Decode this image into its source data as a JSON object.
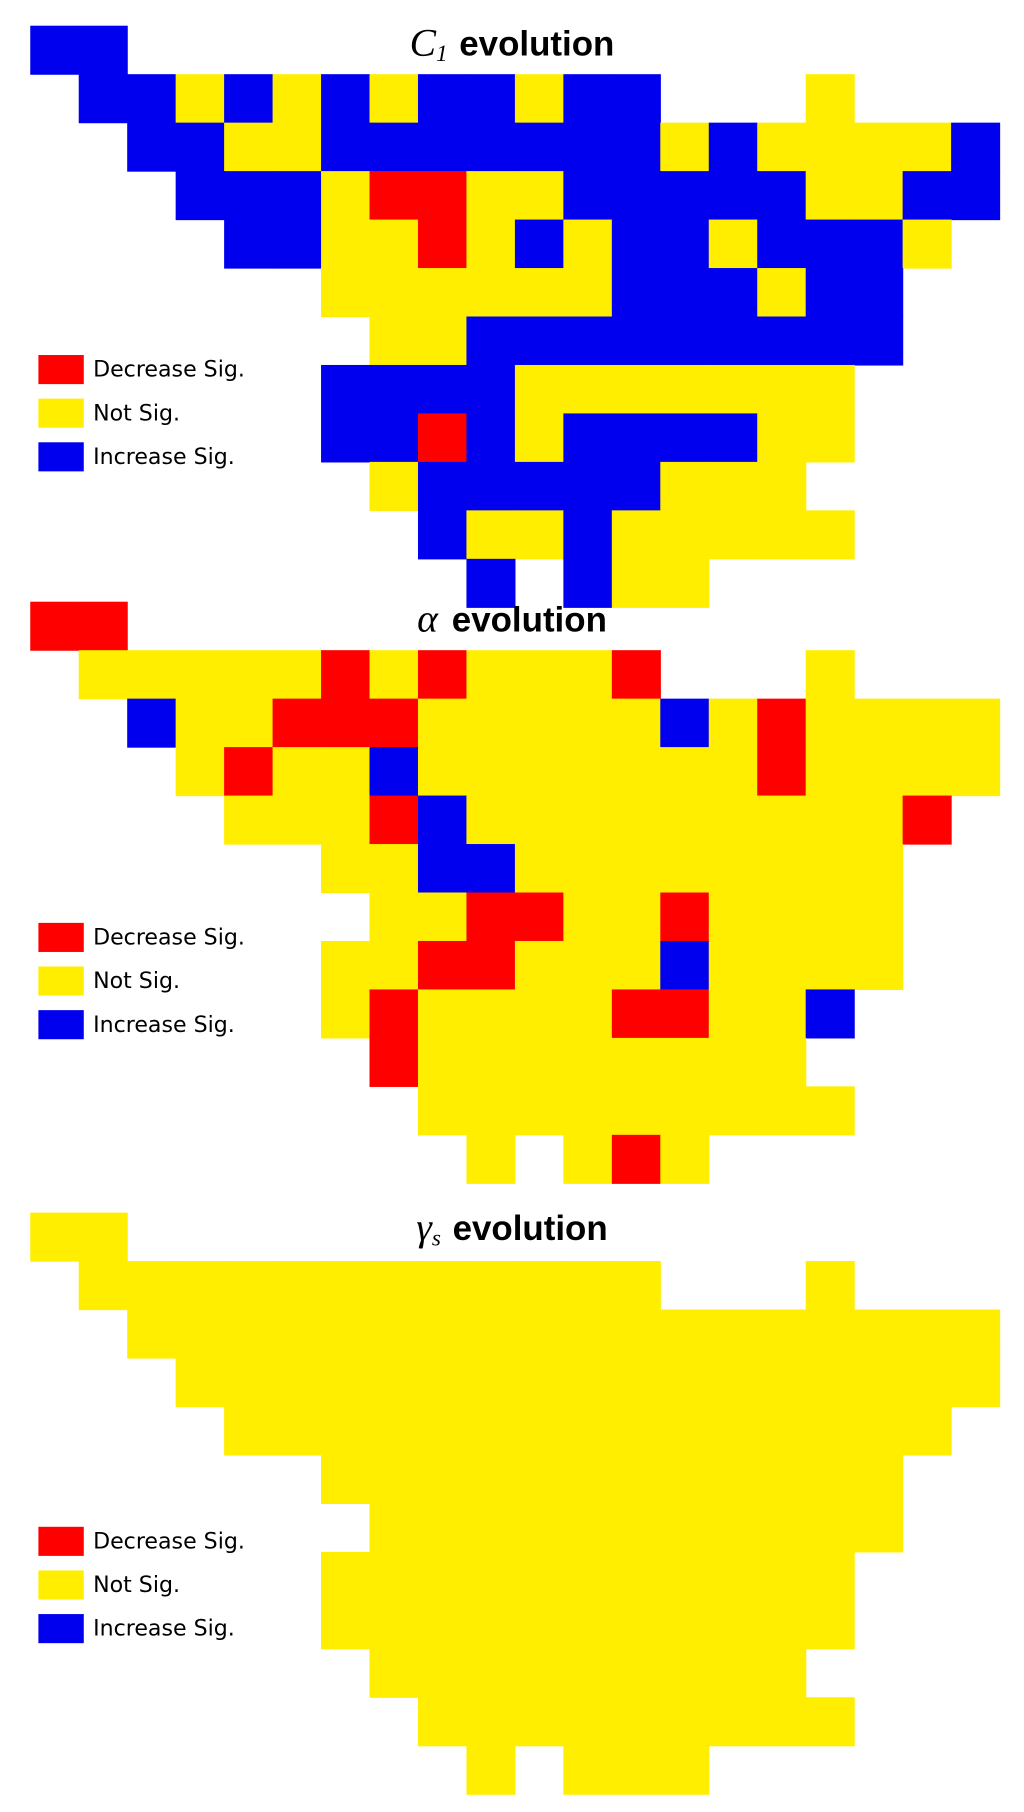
{
  "panels": [
    {
      "title": {
        "symbol": "C",
        "subscript": "1",
        "word": "evolution"
      },
      "legend": [
        {
          "label": "Decrease Sig.",
          "color": "#ff0000"
        },
        {
          "label": "Not Sig.",
          "color": "#ffee00"
        },
        {
          "label": "Increase Sig.",
          "color": "#0000ee"
        }
      ],
      "grid": [
        [
          2,
          2,
          null,
          null,
          null,
          null,
          null,
          null,
          null,
          null,
          null,
          null,
          null,
          null,
          null,
          null,
          null,
          null,
          null,
          null
        ],
        [
          null,
          2,
          2,
          1,
          2,
          1,
          2,
          1,
          2,
          2,
          1,
          2,
          2,
          null,
          null,
          null,
          1,
          null,
          null,
          null
        ],
        [
          null,
          null,
          2,
          2,
          1,
          1,
          2,
          2,
          2,
          2,
          2,
          2,
          2,
          1,
          2,
          1,
          1,
          1,
          1,
          2
        ],
        [
          null,
          null,
          null,
          2,
          2,
          2,
          1,
          0,
          0,
          1,
          1,
          2,
          2,
          2,
          2,
          2,
          1,
          1,
          2,
          2
        ],
        [
          null,
          null,
          null,
          null,
          2,
          2,
          1,
          1,
          0,
          1,
          2,
          1,
          2,
          2,
          1,
          2,
          2,
          2,
          1,
          null
        ],
        [
          null,
          null,
          null,
          null,
          null,
          null,
          1,
          1,
          1,
          1,
          1,
          1,
          2,
          2,
          2,
          1,
          2,
          2,
          null,
          null
        ],
        [
          null,
          null,
          null,
          null,
          null,
          null,
          null,
          1,
          1,
          2,
          2,
          2,
          2,
          2,
          2,
          2,
          2,
          2,
          null,
          null
        ],
        [
          null,
          null,
          null,
          null,
          null,
          null,
          2,
          2,
          2,
          2,
          1,
          1,
          1,
          1,
          1,
          1,
          1,
          null,
          null,
          null
        ],
        [
          null,
          null,
          null,
          null,
          null,
          null,
          2,
          2,
          0,
          2,
          1,
          2,
          2,
          2,
          2,
          1,
          1,
          null,
          null,
          null
        ],
        [
          null,
          null,
          null,
          null,
          null,
          null,
          null,
          1,
          2,
          2,
          2,
          2,
          2,
          1,
          1,
          1,
          null,
          null,
          null,
          null
        ],
        [
          null,
          null,
          null,
          null,
          null,
          null,
          null,
          null,
          2,
          1,
          1,
          2,
          1,
          1,
          1,
          1,
          1,
          null,
          null,
          null
        ],
        [
          null,
          null,
          null,
          null,
          null,
          null,
          null,
          null,
          null,
          2,
          null,
          2,
          1,
          1,
          null,
          null,
          null,
          null,
          null,
          null
        ]
      ]
    },
    {
      "title": {
        "symbol": "α",
        "word": "evolution"
      },
      "legend": [
        {
          "label": "Decrease Sig.",
          "color": "#ff0000"
        },
        {
          "label": "Not Sig.",
          "color": "#ffee00"
        },
        {
          "label": "Increase Sig.",
          "color": "#0000ee"
        }
      ],
      "grid": [
        [
          0,
          0,
          null,
          null,
          null,
          null,
          null,
          null,
          null,
          null,
          null,
          null,
          null,
          null,
          null,
          null,
          null,
          null,
          null,
          null
        ],
        [
          null,
          1,
          1,
          1,
          1,
          1,
          0,
          1,
          0,
          1,
          1,
          1,
          0,
          null,
          null,
          null,
          1,
          null,
          null,
          null
        ],
        [
          null,
          null,
          2,
          1,
          1,
          0,
          0,
          0,
          1,
          1,
          1,
          1,
          1,
          2,
          1,
          0,
          1,
          1,
          1,
          1
        ],
        [
          null,
          null,
          null,
          1,
          0,
          1,
          1,
          2,
          1,
          1,
          1,
          1,
          1,
          1,
          1,
          0,
          1,
          1,
          1,
          1
        ],
        [
          null,
          null,
          null,
          null,
          1,
          1,
          1,
          0,
          2,
          1,
          1,
          1,
          1,
          1,
          1,
          1,
          1,
          1,
          0,
          null
        ],
        [
          null,
          null,
          null,
          null,
          null,
          null,
          1,
          1,
          2,
          2,
          1,
          1,
          1,
          1,
          1,
          1,
          1,
          1,
          null,
          null
        ],
        [
          null,
          null,
          null,
          null,
          null,
          null,
          null,
          1,
          1,
          0,
          0,
          1,
          1,
          0,
          1,
          1,
          1,
          1,
          null,
          null
        ],
        [
          null,
          null,
          null,
          null,
          null,
          null,
          1,
          1,
          0,
          0,
          1,
          1,
          1,
          2,
          1,
          1,
          1,
          1,
          null,
          null
        ],
        [
          null,
          null,
          null,
          null,
          null,
          null,
          1,
          0,
          1,
          1,
          1,
          1,
          0,
          0,
          1,
          1,
          2,
          null,
          null,
          null
        ],
        [
          null,
          null,
          null,
          null,
          null,
          null,
          null,
          0,
          1,
          1,
          1,
          1,
          1,
          1,
          1,
          1,
          null,
          null,
          null,
          null
        ],
        [
          null,
          null,
          null,
          null,
          null,
          null,
          null,
          null,
          1,
          1,
          1,
          1,
          1,
          1,
          1,
          1,
          1,
          null,
          null,
          null
        ],
        [
          null,
          null,
          null,
          null,
          null,
          null,
          null,
          null,
          null,
          1,
          null,
          1,
          0,
          1,
          null,
          null,
          null,
          null,
          null,
          null
        ]
      ]
    },
    {
      "title": {
        "symbol": "γ",
        "subscript": "s",
        "word": "evolution"
      },
      "legend": [
        {
          "label": "Decrease Sig.",
          "color": "#ff0000"
        },
        {
          "label": "Not Sig.",
          "color": "#ffee00"
        },
        {
          "label": "Increase Sig.",
          "color": "#0000ee"
        }
      ],
      "grid": [
        [
          1,
          1,
          null,
          null,
          null,
          null,
          null,
          null,
          null,
          null,
          null,
          null,
          null,
          null,
          null,
          null,
          null,
          null,
          null,
          null
        ],
        [
          null,
          1,
          1,
          1,
          1,
          1,
          1,
          1,
          1,
          1,
          1,
          1,
          1,
          null,
          null,
          null,
          1,
          null,
          null,
          null
        ],
        [
          null,
          null,
          1,
          1,
          1,
          1,
          1,
          1,
          1,
          1,
          1,
          1,
          1,
          1,
          1,
          1,
          1,
          1,
          1,
          1
        ],
        [
          null,
          null,
          null,
          1,
          1,
          1,
          1,
          1,
          1,
          1,
          1,
          1,
          1,
          1,
          1,
          1,
          1,
          1,
          1,
          1
        ],
        [
          null,
          null,
          null,
          null,
          1,
          1,
          1,
          1,
          1,
          1,
          1,
          1,
          1,
          1,
          1,
          1,
          1,
          1,
          1,
          null
        ],
        [
          null,
          null,
          null,
          null,
          null,
          null,
          1,
          1,
          1,
          1,
          1,
          1,
          1,
          1,
          1,
          1,
          1,
          1,
          null,
          null
        ],
        [
          null,
          null,
          null,
          null,
          null,
          null,
          null,
          1,
          1,
          1,
          1,
          1,
          1,
          1,
          1,
          1,
          1,
          1,
          null,
          null
        ],
        [
          null,
          null,
          null,
          null,
          null,
          null,
          1,
          1,
          1,
          1,
          1,
          1,
          1,
          1,
          1,
          1,
          1,
          null,
          null,
          null
        ],
        [
          null,
          null,
          null,
          null,
          null,
          null,
          1,
          1,
          1,
          1,
          1,
          1,
          1,
          1,
          1,
          1,
          1,
          null,
          null,
          null
        ],
        [
          null,
          null,
          null,
          null,
          null,
          null,
          null,
          1,
          1,
          1,
          1,
          1,
          1,
          1,
          1,
          1,
          null,
          null,
          null,
          null
        ],
        [
          null,
          null,
          null,
          null,
          null,
          null,
          null,
          null,
          1,
          1,
          1,
          1,
          1,
          1,
          1,
          1,
          1,
          null,
          null,
          null
        ],
        [
          null,
          null,
          null,
          null,
          null,
          null,
          null,
          null,
          null,
          1,
          null,
          1,
          1,
          1,
          null,
          null,
          null,
          null,
          null,
          null
        ]
      ]
    }
  ]
}
